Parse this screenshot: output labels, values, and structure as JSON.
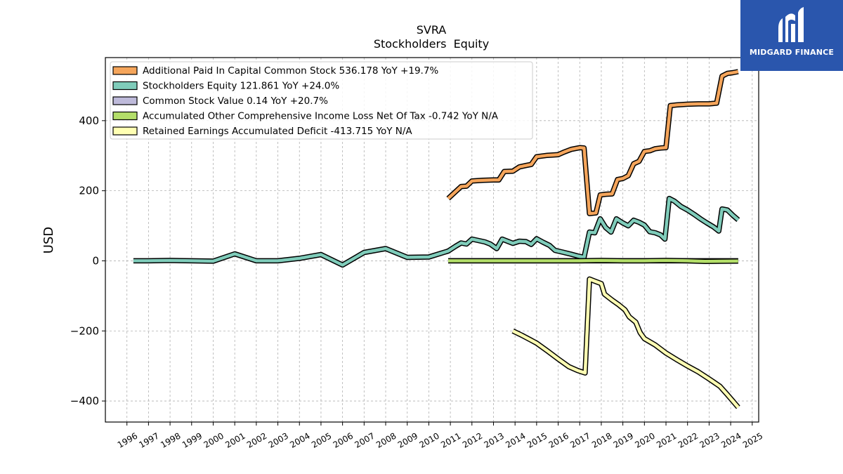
{
  "brand": {
    "name": "MIDGARD FINANCE",
    "color": "#2a56ad"
  },
  "chart_data": {
    "type": "line",
    "title": "SVRA",
    "subtitle": "Stockholders  Equity",
    "xlabel": "",
    "ylabel": "USD",
    "xlim": [
      1995.0,
      2025.3
    ],
    "ylim": [
      -460,
      580
    ],
    "x_ticks": [
      "1996",
      "1997",
      "1998",
      "1999",
      "2000",
      "2001",
      "2002",
      "2003",
      "2004",
      "2005",
      "2006",
      "2007",
      "2008",
      "2009",
      "2010",
      "2011",
      "2012",
      "2013",
      "2014",
      "2015",
      "2016",
      "2017",
      "2018",
      "2019",
      "2020",
      "2021",
      "2022",
      "2023",
      "2024",
      "2025"
    ],
    "y_ticks": [
      -400,
      -200,
      0,
      200,
      400
    ],
    "y_tick_labels": [
      "−400",
      "−200",
      "0",
      "200",
      "400"
    ],
    "grid": true,
    "legend_position": "top-left",
    "series": [
      {
        "name": "Additional Paid In Capital Common Stock  536.178 YoY +19.7%",
        "color": "#f5a55b",
        "points": [
          [
            2010.9,
            178
          ],
          [
            2011.2,
            195
          ],
          [
            2011.5,
            212
          ],
          [
            2011.75,
            213
          ],
          [
            2012.0,
            228
          ],
          [
            2012.5,
            230
          ],
          [
            2013.0,
            231
          ],
          [
            2013.25,
            231
          ],
          [
            2013.5,
            255
          ],
          [
            2013.9,
            256
          ],
          [
            2014.2,
            268
          ],
          [
            2014.5,
            272
          ],
          [
            2014.75,
            275
          ],
          [
            2015.0,
            297
          ],
          [
            2015.5,
            301
          ],
          [
            2016.0,
            303
          ],
          [
            2016.3,
            311
          ],
          [
            2016.6,
            318
          ],
          [
            2017.0,
            323
          ],
          [
            2017.2,
            322
          ],
          [
            2017.45,
            135
          ],
          [
            2017.75,
            137
          ],
          [
            2017.95,
            188
          ],
          [
            2018.2,
            190
          ],
          [
            2018.5,
            191
          ],
          [
            2018.75,
            232
          ],
          [
            2019.0,
            235
          ],
          [
            2019.25,
            243
          ],
          [
            2019.5,
            277
          ],
          [
            2019.75,
            284
          ],
          [
            2020.0,
            312
          ],
          [
            2020.25,
            314
          ],
          [
            2020.5,
            320
          ],
          [
            2020.75,
            322
          ],
          [
            2021.0,
            323
          ],
          [
            2021.2,
            443
          ],
          [
            2021.5,
            445
          ],
          [
            2022.0,
            447
          ],
          [
            2022.5,
            448
          ],
          [
            2023.0,
            448
          ],
          [
            2023.35,
            450
          ],
          [
            2023.6,
            527
          ],
          [
            2023.85,
            535
          ],
          [
            2024.1,
            537
          ],
          [
            2024.35,
            540
          ]
        ]
      },
      {
        "name": "Stockholders Equity  121.861 YoY +24.0%",
        "color": "#7fccba",
        "points": [
          [
            1996.3,
            0
          ],
          [
            1997.0,
            0
          ],
          [
            1998.0,
            1
          ],
          [
            1999.0,
            0
          ],
          [
            2000.0,
            -1
          ],
          [
            2001.0,
            20
          ],
          [
            2002.0,
            0
          ],
          [
            2003.0,
            0
          ],
          [
            2004.0,
            7
          ],
          [
            2005.0,
            18
          ],
          [
            2006.0,
            -12
          ],
          [
            2007.0,
            24
          ],
          [
            2008.0,
            35
          ],
          [
            2009.0,
            10
          ],
          [
            2010.0,
            11
          ],
          [
            2010.9,
            28
          ],
          [
            2011.25,
            42
          ],
          [
            2011.5,
            51
          ],
          [
            2011.75,
            48
          ],
          [
            2012.0,
            62
          ],
          [
            2012.3,
            58
          ],
          [
            2012.6,
            54
          ],
          [
            2012.85,
            48
          ],
          [
            2013.15,
            35
          ],
          [
            2013.4,
            62
          ],
          [
            2013.65,
            56
          ],
          [
            2013.9,
            50
          ],
          [
            2014.2,
            56
          ],
          [
            2014.5,
            55
          ],
          [
            2014.75,
            47
          ],
          [
            2015.0,
            63
          ],
          [
            2015.3,
            53
          ],
          [
            2015.6,
            44
          ],
          [
            2015.85,
            30
          ],
          [
            2016.2,
            25
          ],
          [
            2016.6,
            19
          ],
          [
            2016.9,
            14
          ],
          [
            2017.2,
            10
          ],
          [
            2017.45,
            82
          ],
          [
            2017.7,
            80
          ],
          [
            2017.95,
            120
          ],
          [
            2018.2,
            95
          ],
          [
            2018.45,
            82
          ],
          [
            2018.7,
            120
          ],
          [
            2019.0,
            108
          ],
          [
            2019.25,
            100
          ],
          [
            2019.5,
            116
          ],
          [
            2019.75,
            110
          ],
          [
            2020.0,
            102
          ],
          [
            2020.25,
            83
          ],
          [
            2020.5,
            80
          ],
          [
            2020.75,
            74
          ],
          [
            2020.95,
            62
          ],
          [
            2021.15,
            178
          ],
          [
            2021.4,
            170
          ],
          [
            2021.7,
            155
          ],
          [
            2022.0,
            145
          ],
          [
            2022.3,
            133
          ],
          [
            2022.6,
            120
          ],
          [
            2022.9,
            108
          ],
          [
            2023.2,
            97
          ],
          [
            2023.45,
            85
          ],
          [
            2023.6,
            148
          ],
          [
            2023.85,
            145
          ],
          [
            2024.1,
            130
          ],
          [
            2024.35,
            117
          ]
        ]
      },
      {
        "name": "Common Stock Value  0.14 YoY +20.7%",
        "color": "#bebada",
        "points": [
          [
            2010.9,
            0.1
          ],
          [
            2024.35,
            0.14
          ]
        ]
      },
      {
        "name": "Accumulated Other Comprehensive Income Loss Net Of Tax  -0.742 YoY N/A",
        "color": "#b3de69",
        "points": [
          [
            2010.9,
            0
          ],
          [
            2014.0,
            0
          ],
          [
            2017.0,
            0
          ],
          [
            2018.0,
            1
          ],
          [
            2019.0,
            0
          ],
          [
            2020.0,
            0
          ],
          [
            2021.0,
            1
          ],
          [
            2022.0,
            0
          ],
          [
            2022.8,
            -1.5
          ],
          [
            2023.5,
            -1.2
          ],
          [
            2024.35,
            -0.74
          ]
        ]
      },
      {
        "name": "Retained Earnings Accumulated Deficit  -413.715 YoY N/A",
        "color": "#ffffb3",
        "points": [
          [
            2013.9,
            -200
          ],
          [
            2014.3,
            -212
          ],
          [
            2014.7,
            -225
          ],
          [
            2015.0,
            -235
          ],
          [
            2015.5,
            -257
          ],
          [
            2016.0,
            -280
          ],
          [
            2016.5,
            -302
          ],
          [
            2016.9,
            -313
          ],
          [
            2017.25,
            -320
          ],
          [
            2017.45,
            -52
          ],
          [
            2017.7,
            -58
          ],
          [
            2018.0,
            -65
          ],
          [
            2018.15,
            -95
          ],
          [
            2018.5,
            -112
          ],
          [
            2018.8,
            -125
          ],
          [
            2019.1,
            -140
          ],
          [
            2019.3,
            -160
          ],
          [
            2019.6,
            -175
          ],
          [
            2019.8,
            -205
          ],
          [
            2020.0,
            -222
          ],
          [
            2020.5,
            -240
          ],
          [
            2021.0,
            -263
          ],
          [
            2021.5,
            -282
          ],
          [
            2022.0,
            -300
          ],
          [
            2022.5,
            -317
          ],
          [
            2023.0,
            -337
          ],
          [
            2023.5,
            -358
          ],
          [
            2023.85,
            -382
          ],
          [
            2024.1,
            -400
          ],
          [
            2024.35,
            -418
          ]
        ]
      }
    ]
  }
}
